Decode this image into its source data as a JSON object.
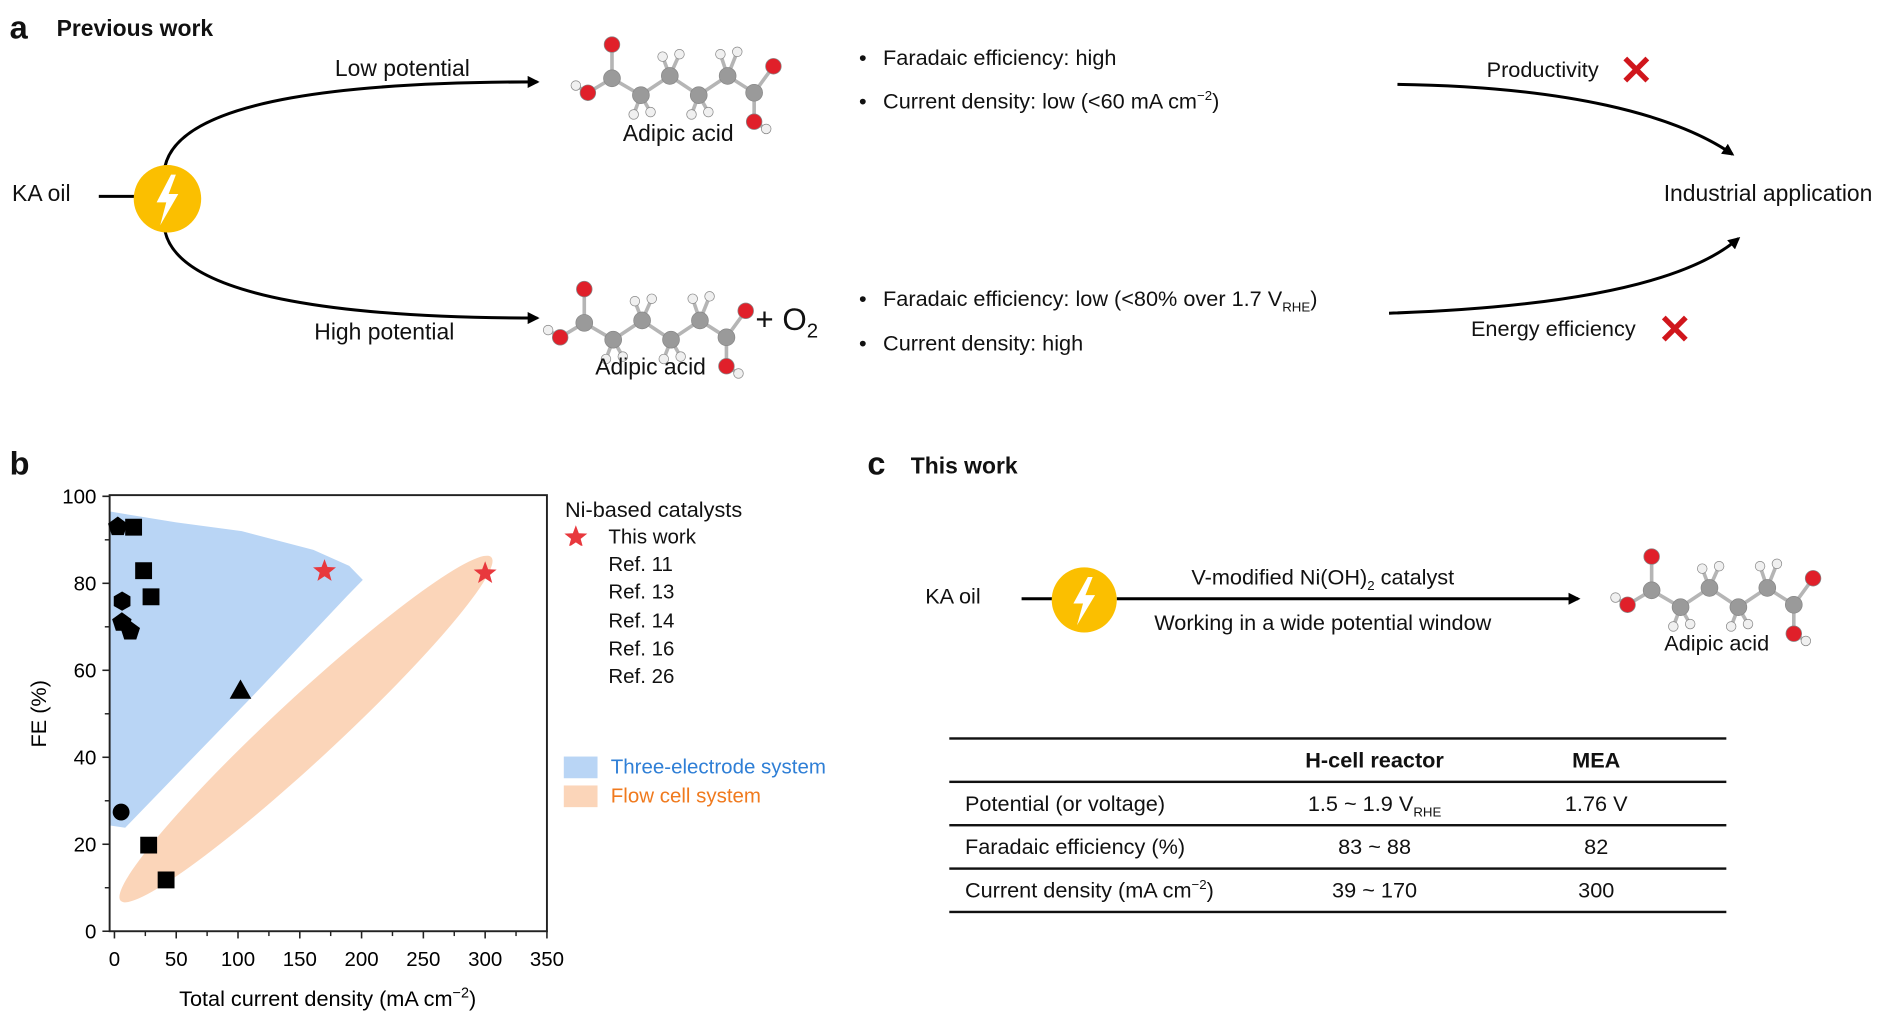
{
  "panel_a": {
    "label": "a",
    "title": "Previous work",
    "start": "KA oil",
    "upper_path_label": "Low potential",
    "lower_path_label": "High potential",
    "upper_product": "Adipic acid",
    "lower_product": "Adipic acid",
    "lower_byproduct": {
      "main": "+ O",
      "sub": "2"
    },
    "upper_bullets": [
      {
        "main": "Faradaic efficiency: high"
      },
      {
        "main": "Current density: low (<60 mA cm",
        "sup": "−2",
        "tail": ")"
      }
    ],
    "lower_bullets": [
      {
        "main": "Faradaic efficiency: low (<80% over 1.7 V",
        "sub": "RHE",
        "tail": ")"
      },
      {
        "main": "Current density: high"
      }
    ],
    "upper_outcome": "Productivity",
    "lower_outcome": "Energy efficiency",
    "target": "Industrial application",
    "icons": {
      "source": "lightning-bolt-icon",
      "fail": "red-x-icon"
    },
    "colors": {
      "bolt_circle": "#FBBF00",
      "fail": "#D0161C"
    }
  },
  "panel_b": {
    "label": "b",
    "legend_title": "Ni-based catalysts",
    "legend": [
      {
        "label": "This work",
        "marker": "star",
        "color": "#E8383D"
      },
      {
        "label": "Ref. 11",
        "marker": "circle",
        "color": "#000000"
      },
      {
        "label": "Ref. 13",
        "marker": "triangle",
        "color": "#000000"
      },
      {
        "label": "Ref. 14",
        "marker": "square",
        "color": "#000000"
      },
      {
        "label": "Ref. 16",
        "marker": "pentagon",
        "color": "#000000"
      },
      {
        "label": "Ref. 26",
        "marker": "hexagon",
        "color": "#000000"
      }
    ],
    "regions": [
      {
        "label": "Three-electrode system",
        "fill": "#B9D5F5",
        "text_color": "#2F7FD6"
      },
      {
        "label": "Flow cell system",
        "fill": "#FBD5B9",
        "text_color": "#F07A1E"
      }
    ]
  },
  "chart_data": {
    "type": "scatter",
    "xlabel": {
      "main": "Total current density (mA cm",
      "sup": "−2",
      "tail": ")"
    },
    "ylabel": "FE (%)",
    "xlim": [
      0,
      350
    ],
    "ylim": [
      0,
      100
    ],
    "xticks": [
      "0",
      "50",
      "100",
      "150",
      "200",
      "250",
      "300",
      "350"
    ],
    "yticks": [
      "0",
      "20",
      "40",
      "60",
      "80",
      "100"
    ],
    "grid": false,
    "legend_position": "right",
    "series": [
      {
        "name": "This work",
        "marker": "star",
        "points": [
          [
            170,
            82.8
          ],
          [
            300,
            82.3
          ]
        ]
      },
      {
        "name": "Ref. 11",
        "marker": "circle",
        "points": [
          [
            5.4,
            27.4
          ]
        ]
      },
      {
        "name": "Ref. 13",
        "marker": "triangle",
        "points": [
          [
            102,
            55.4
          ]
        ]
      },
      {
        "name": "Ref. 14",
        "marker": "square",
        "points": [
          [
            15.5,
            92.9
          ],
          [
            23.6,
            82.9
          ],
          [
            29.6,
            76.9
          ],
          [
            27.7,
            19.8
          ],
          [
            41.8,
            11.8
          ]
        ]
      },
      {
        "name": "Ref. 16",
        "marker": "pentagon",
        "points": [
          [
            2.7,
            93.0
          ],
          [
            6,
            71
          ],
          [
            12.8,
            69
          ]
        ]
      },
      {
        "name": "Ref. 26",
        "marker": "hexagon",
        "points": [
          [
            6.2,
            75.9
          ]
        ]
      }
    ]
  },
  "panel_c": {
    "label": "c",
    "title": "This work",
    "start": "KA oil",
    "catalyst": {
      "main": "V-modified Ni(OH)",
      "sub": "2",
      "tail": " catalyst"
    },
    "condition": "Working in a wide potential window",
    "product": "Adipic acid",
    "table": {
      "headers": [
        "",
        "H-cell reactor",
        "MEA"
      ],
      "rows": [
        {
          "label": "Potential (or voltage)",
          "hcell": {
            "main": "1.5 ~ 1.9 V",
            "sub": "RHE"
          },
          "mea": "1.76 V"
        },
        {
          "label": "Faradaic efficiency (%)",
          "hcell": {
            "main": "83 ~ 88"
          },
          "mea": "82"
        },
        {
          "label": {
            "main": "Current density (mA cm",
            "sup": "−2",
            "tail": ")"
          },
          "hcell": {
            "main": "39 ~ 170"
          },
          "mea": "300"
        }
      ]
    }
  }
}
